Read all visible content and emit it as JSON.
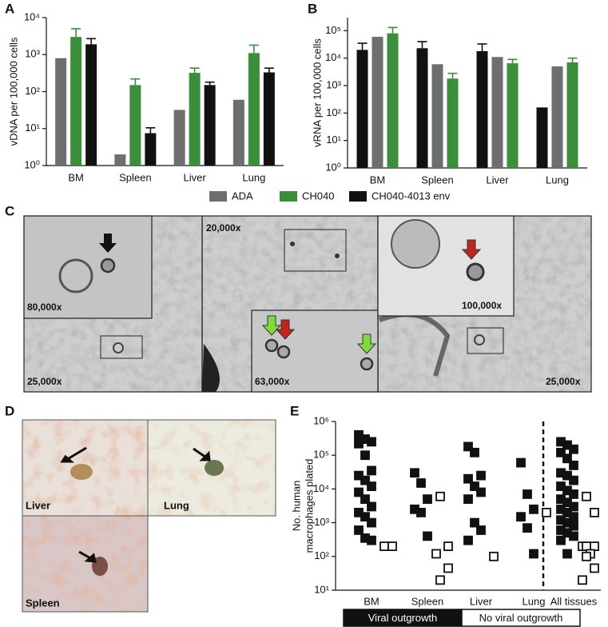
{
  "panel_labels": [
    "A",
    "B",
    "C",
    "D",
    "E"
  ],
  "micrographs": {
    "C": [
      "80,000x",
      "25,000x",
      "20,000x",
      "63,000x",
      "100,000x",
      "25,000x"
    ],
    "D": [
      "Liver",
      "Lung",
      "Spleen"
    ]
  },
  "chart_data": [
    {
      "type": "bar",
      "ylabel": "vDNA per 100,000 cells",
      "categories": [
        "BM",
        "Spleen",
        "Liver",
        "Lung"
      ],
      "series": [
        {
          "name": "ADA",
          "color": "#6d6e70",
          "values": [
            800,
            2,
            32,
            60
          ]
        },
        {
          "name": "CH040",
          "color": "#3a8f3a",
          "values": [
            3000,
            150,
            320,
            1100
          ],
          "errors": [
            2000,
            70,
            110,
            700
          ]
        },
        {
          "name": "CH040-4013 env",
          "color": "#111111",
          "values": [
            1900,
            7.5,
            150,
            330
          ],
          "errors": [
            800,
            3,
            30,
            100
          ]
        }
      ],
      "ylim": [
        1,
        10000
      ],
      "log_scale": true,
      "yticks": [
        {
          "value": 1,
          "label": "10⁰"
        },
        {
          "value": 10,
          "label": "10¹"
        },
        {
          "value": 100,
          "label": "10²"
        },
        {
          "value": 1000,
          "label": "10³"
        },
        {
          "value": 10000,
          "label": "10⁴"
        }
      ]
    },
    {
      "type": "bar",
      "ylabel": "vRNA per 100,000 cells",
      "categories": [
        "BM",
        "Spleen",
        "Liver",
        "Lung"
      ],
      "series": [
        {
          "color": "#111111",
          "values": [
            20000,
            23000,
            18000,
            160
          ],
          "errors": [
            15000,
            17000,
            15000,
            null
          ]
        },
        {
          "color": "#6d6e70",
          "values": [
            60000,
            6000,
            11000,
            5000
          ]
        },
        {
          "color": "#3a8f3a",
          "values": [
            80000,
            1800,
            6500,
            7000
          ],
          "errors": [
            50000,
            1000,
            2500,
            3000
          ]
        }
      ],
      "ylim": [
        1,
        300000
      ],
      "log_scale": true,
      "yticks": [
        {
          "value": 1,
          "label": "10⁰"
        },
        {
          "value": 10,
          "label": "10¹"
        },
        {
          "value": 100,
          "label": "10²"
        },
        {
          "value": 1000,
          "label": "10³"
        },
        {
          "value": 10000,
          "label": "10⁴"
        },
        {
          "value": 100000,
          "label": "10⁵"
        }
      ]
    },
    {
      "type": "scatter",
      "ylabel": [
        "No. human",
        "macrophages plated"
      ],
      "categories": [
        "BM",
        "Spleen",
        "Liver",
        "Lung",
        "All tissues"
      ],
      "series": [
        {
          "name": "Viral outgrowth",
          "color": "#111111",
          "marker": "filled",
          "values": [
            [
              400000,
              300000,
              250000,
              220000,
              100000,
              35000,
              25000,
              18000,
              12000,
              8000,
              5000,
              3000,
              2000,
              1500,
              1000,
              600,
              350,
              300
            ],
            [
              30000,
              15000,
              5000,
              2500,
              2000,
              400
            ],
            [
              180000,
              120000,
              25000,
              20000,
              12000,
              8000,
              5000,
              1000,
              600,
              300
            ],
            [
              60000,
              7000,
              2500,
              1500,
              700,
              120
            ],
            [
              250000,
              200000,
              150000,
              120000,
              80000,
              50000,
              30000,
              25000,
              18000,
              12000,
              9000,
              7000,
              5000,
              4000,
              3000,
              2500,
              2000,
              1500,
              1200,
              1000,
              800,
              600,
              500,
              400,
              300,
              120
            ]
          ]
        },
        {
          "name": "No viral outgrowth",
          "color": "#111111",
          "marker": "open",
          "values": [
            [
              200,
              200
            ],
            [
              6000,
              200,
              120,
              45,
              20
            ],
            [
              100
            ],
            [
              2000
            ],
            [
              6000,
              2000,
              200,
              200,
              200,
              120,
              100,
              45,
              20
            ]
          ]
        }
      ],
      "ylim": [
        10,
        1000000
      ],
      "log_scale": true,
      "yticks": [
        {
          "value": 10,
          "label": "10¹"
        },
        {
          "value": 100,
          "label": "10²"
        },
        {
          "value": 1000,
          "label": "10³"
        },
        {
          "value": 10000,
          "label": "10⁴"
        },
        {
          "value": 100000,
          "label": "10⁵"
        },
        {
          "value": 1000000,
          "label": "10⁶"
        }
      ]
    }
  ]
}
